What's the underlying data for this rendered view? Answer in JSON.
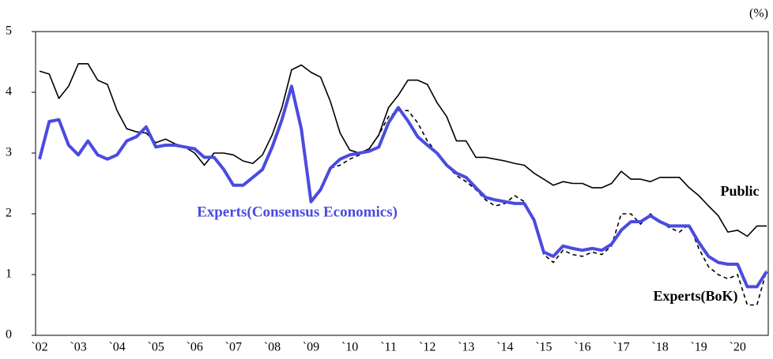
{
  "chart_data": {
    "type": "line",
    "unit": "(%)",
    "annotations": [
      "Public",
      "Experts(Consensus Economics)",
      "Experts(BoK)"
    ],
    "categories": [
      "`02",
      null,
      null,
      null,
      "`03",
      null,
      null,
      null,
      "`04",
      null,
      null,
      null,
      "`05",
      null,
      null,
      null,
      "`06",
      null,
      null,
      null,
      "`07",
      null,
      null,
      null,
      "`08",
      null,
      null,
      null,
      "`09",
      null,
      null,
      null,
      "`10",
      null,
      null,
      null,
      "`11",
      null,
      null,
      null,
      "`12",
      null,
      null,
      null,
      "`13",
      null,
      null,
      null,
      "`14",
      null,
      null,
      null,
      "`15",
      null,
      null,
      null,
      "`16",
      null,
      null,
      null,
      "`17",
      null,
      null,
      null,
      "`18",
      null,
      null,
      null,
      "`19",
      null,
      null,
      null,
      "`20",
      null,
      null,
      null
    ],
    "ylim": [
      0,
      5
    ],
    "yticks": [
      0,
      1,
      2,
      3,
      4,
      5
    ],
    "series": [
      {
        "name": "Public",
        "color": "#000000",
        "line_style": "solid",
        "width": 1.6,
        "values": [
          4.35,
          4.3,
          3.9,
          4.1,
          4.47,
          4.47,
          4.2,
          4.13,
          3.7,
          3.4,
          3.35,
          3.33,
          3.17,
          3.23,
          3.15,
          3.1,
          3.0,
          2.8,
          3.0,
          3.0,
          2.97,
          2.87,
          2.83,
          2.97,
          3.3,
          3.75,
          4.37,
          4.45,
          4.33,
          4.25,
          3.85,
          3.33,
          3.05,
          3.0,
          3.07,
          3.3,
          3.75,
          3.95,
          4.2,
          4.2,
          4.13,
          3.83,
          3.6,
          3.2,
          3.2,
          2.93,
          2.93,
          2.9,
          2.87,
          2.83,
          2.8,
          2.67,
          2.57,
          2.47,
          2.53,
          2.5,
          2.5,
          2.43,
          2.43,
          2.5,
          2.7,
          2.57,
          2.57,
          2.53,
          2.6,
          2.6,
          2.6,
          2.43,
          2.3,
          2.13,
          1.97,
          1.7,
          1.73,
          1.63,
          1.8,
          1.8
        ]
      },
      {
        "name": "Experts(Consensus Economics)",
        "color": "#4b4be0",
        "line_style": "solid",
        "width": 4,
        "values": [
          2.9,
          3.52,
          3.55,
          3.13,
          2.97,
          3.2,
          2.97,
          2.9,
          2.97,
          3.2,
          3.27,
          3.43,
          3.1,
          3.13,
          3.13,
          3.1,
          3.07,
          2.93,
          2.93,
          2.73,
          2.47,
          2.47,
          2.6,
          2.73,
          3.1,
          3.55,
          4.1,
          3.4,
          2.2,
          2.4,
          2.75,
          2.9,
          2.97,
          3.0,
          3.03,
          3.1,
          3.5,
          3.75,
          3.53,
          3.27,
          3.13,
          3.0,
          2.8,
          2.67,
          2.6,
          2.43,
          2.27,
          2.23,
          2.2,
          2.17,
          2.17,
          1.9,
          1.37,
          1.3,
          1.47,
          1.43,
          1.4,
          1.43,
          1.4,
          1.5,
          1.73,
          1.87,
          1.87,
          1.97,
          1.87,
          1.8,
          1.8,
          1.8,
          1.53,
          1.3,
          1.2,
          1.17,
          1.17,
          0.8,
          0.8,
          1.05
        ]
      },
      {
        "name": "Experts(BoK)",
        "color": "#000000",
        "line_style": "dashed",
        "width": 1.6,
        "values": [
          null,
          null,
          null,
          null,
          null,
          null,
          null,
          null,
          null,
          null,
          null,
          null,
          null,
          null,
          null,
          null,
          null,
          null,
          null,
          null,
          null,
          null,
          null,
          null,
          null,
          null,
          null,
          null,
          null,
          null,
          2.75,
          2.8,
          2.9,
          2.97,
          3.07,
          3.3,
          3.6,
          3.7,
          3.7,
          3.5,
          3.2,
          3.0,
          2.8,
          2.63,
          2.53,
          2.4,
          2.23,
          2.13,
          2.17,
          2.3,
          2.2,
          1.9,
          1.33,
          1.2,
          1.4,
          1.33,
          1.3,
          1.37,
          1.33,
          1.47,
          2.0,
          2.0,
          1.83,
          2.0,
          1.87,
          1.77,
          1.7,
          1.83,
          1.43,
          1.13,
          1.0,
          0.93,
          1.0,
          0.5,
          0.5,
          1.07
        ]
      }
    ]
  }
}
